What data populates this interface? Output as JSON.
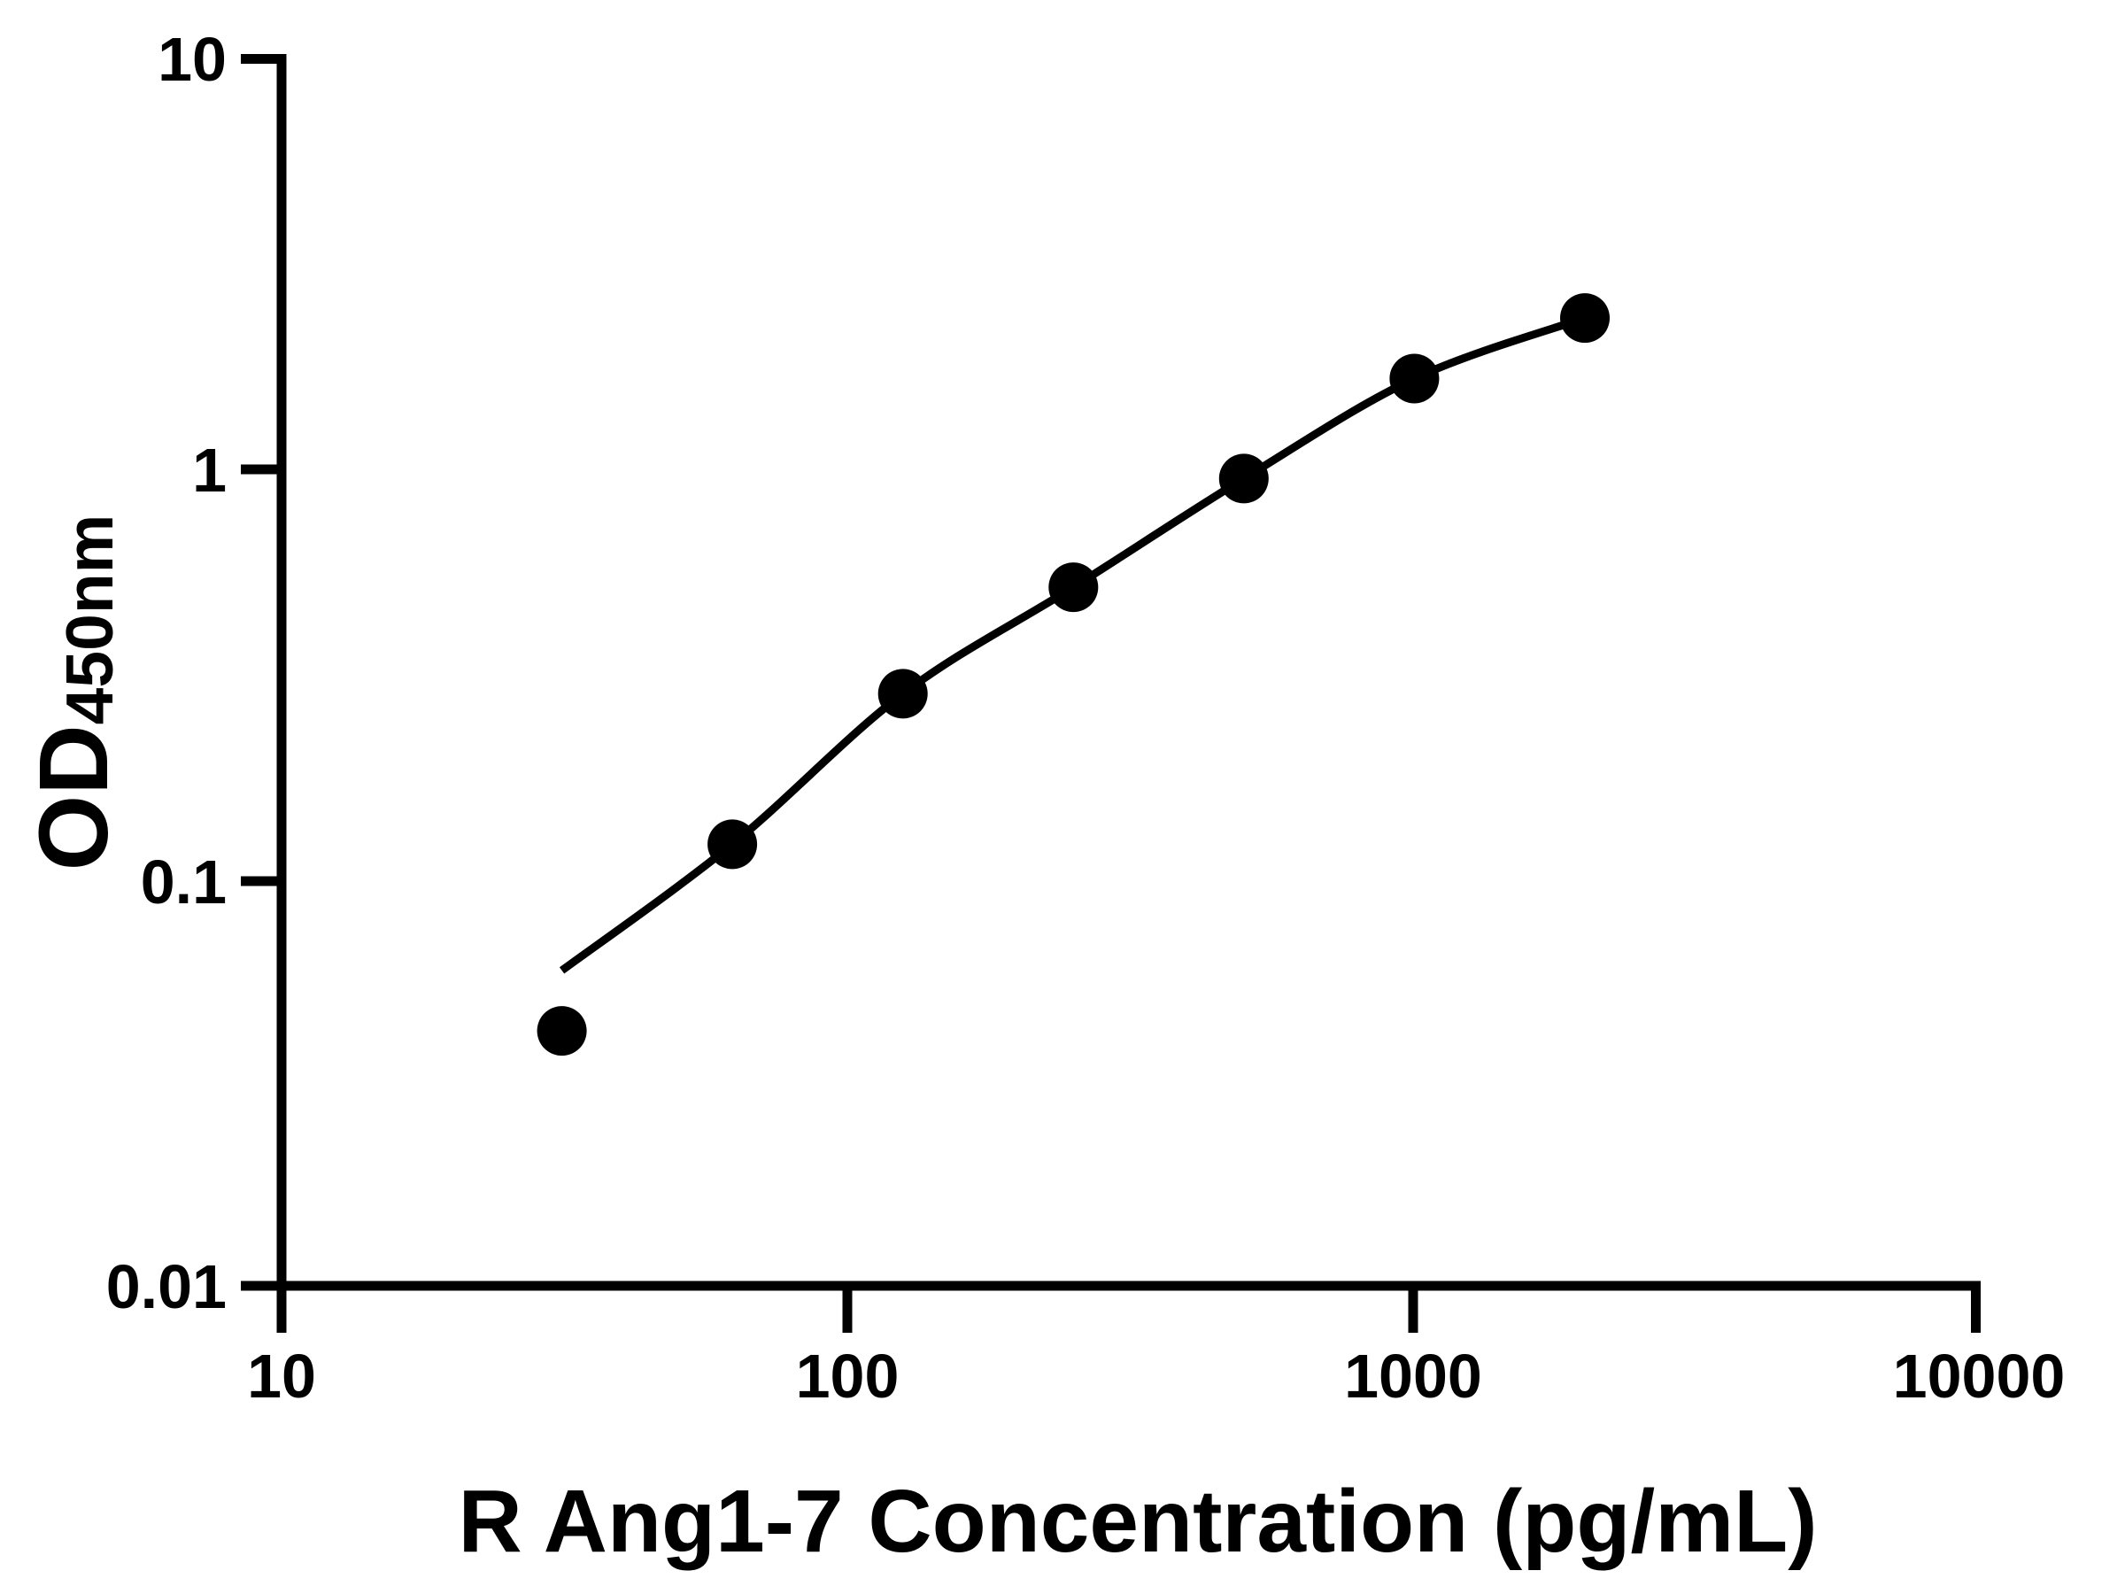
{
  "figure": {
    "background_color": "#ffffff",
    "ink_color": "#000000"
  },
  "chart_data": {
    "type": "scatter",
    "title": "",
    "xlabel": "R Ang1-7 Concentration (pg/mL)",
    "ylabel": "OD450nm",
    "ylabel_main": "OD",
    "ylabel_sub": "450nm",
    "x_scale": "log10",
    "y_scale": "log10",
    "xlim": [
      10,
      10000
    ],
    "ylim": [
      0.01,
      10
    ],
    "grid": false,
    "legend_position": "none",
    "x_tick_labels": [
      "10",
      "100",
      "1000",
      "10000"
    ],
    "x_tick_values": [
      10,
      100,
      1000,
      10000
    ],
    "y_tick_labels": [
      "10",
      "1",
      "0.1",
      "0.01"
    ],
    "y_tick_values": [
      10,
      1,
      0.1,
      0.01
    ],
    "marker_color": "#000000",
    "line_color": "#000000",
    "series": [
      {
        "name": "standard-points",
        "type": "scatter",
        "marker": "filled-circle",
        "points": [
          {
            "conc_pg_ml": 31.25,
            "od": 0.042
          },
          {
            "conc_pg_ml": 62.5,
            "od": 0.12
          },
          {
            "conc_pg_ml": 125,
            "od": 0.28
          },
          {
            "conc_pg_ml": 250,
            "od": 0.51
          },
          {
            "conc_pg_ml": 500,
            "od": 0.94
          },
          {
            "conc_pg_ml": 1000,
            "od": 1.65
          },
          {
            "conc_pg_ml": 2000,
            "od": 2.32
          }
        ]
      },
      {
        "name": "fitted-curve",
        "type": "line",
        "points": [
          {
            "conc_pg_ml": 31.25,
            "od": 0.059
          },
          {
            "conc_pg_ml": 62.5,
            "od": 0.12
          },
          {
            "conc_pg_ml": 125,
            "od": 0.28
          },
          {
            "conc_pg_ml": 250,
            "od": 0.51
          },
          {
            "conc_pg_ml": 500,
            "od": 0.94
          },
          {
            "conc_pg_ml": 1000,
            "od": 1.65
          },
          {
            "conc_pg_ml": 2000,
            "od": 2.32
          }
        ]
      }
    ]
  }
}
